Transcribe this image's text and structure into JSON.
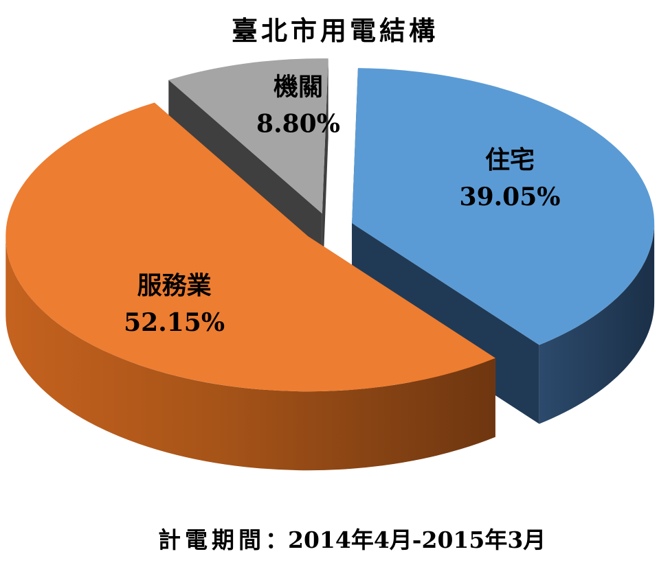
{
  "chart_data": {
    "type": "pie",
    "style": "3d-exploded",
    "title": "臺北市用電結構",
    "slices": [
      {
        "name": "住宅",
        "value": 39.05,
        "label": "39.05%",
        "color": "#5B9BD5",
        "side_color": "#203A56"
      },
      {
        "name": "服務業",
        "value": 52.15,
        "label": "52.15%",
        "color": "#ED7D31",
        "side_color": "#A34F12"
      },
      {
        "name": "機關",
        "value": 8.8,
        "label": "8.80%",
        "color": "#A5A5A5",
        "side_color": "#3F3F3F"
      }
    ]
  },
  "period": {
    "prefix": "計電期間",
    "separator": "：",
    "range": "2014年4月-2015年3月"
  }
}
